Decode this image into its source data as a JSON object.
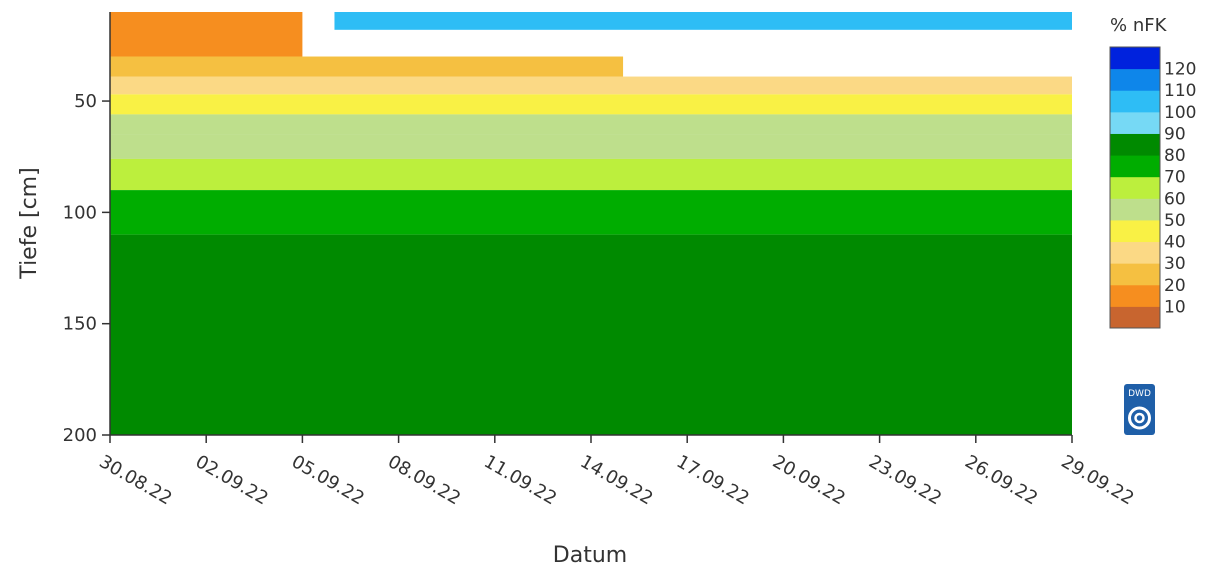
{
  "chart_data": {
    "type": "heatmap",
    "title": "",
    "xlabel": "Datum",
    "ylabel": "Tiefe [cm]",
    "x_ticks": [
      "30.08.22",
      "02.09.22",
      "05.09.22",
      "08.09.22",
      "11.09.22",
      "14.09.22",
      "17.09.22",
      "20.09.22",
      "23.09.22",
      "26.09.22",
      "29.09.22"
    ],
    "y_ticks": [
      50,
      100,
      150,
      200
    ],
    "xlim": [
      "2022-08-30",
      "2022-09-29"
    ],
    "ylim": [
      10,
      200
    ],
    "y_reversed": true,
    "colorbar": {
      "title": "% nFK",
      "levels": [
        10,
        20,
        30,
        40,
        50,
        60,
        70,
        80,
        90,
        100,
        110,
        120
      ],
      "colors": [
        "#c8652f",
        "#f68e1f",
        "#f5c041",
        "#fbd985",
        "#f9f145",
        "#bedf8c",
        "#bcef3d",
        "#00ad00",
        "#008a00",
        "#76d9f5",
        "#2ebdf5",
        "#0e86ea",
        "#0022dd"
      ]
    },
    "series": [
      {
        "depth_from": 10,
        "depth_to": 30,
        "period": "30.08.22 – 05.09.22",
        "nfk": 10
      },
      {
        "depth_from": 30,
        "depth_to": 39,
        "period": "30.08.22 – 15.09.22",
        "nfk": 20
      },
      {
        "depth_from": 39,
        "depth_to": 47,
        "period": "30.08.22 – 29.09.22",
        "nfk": 30
      },
      {
        "depth_from": 47,
        "depth_to": 56,
        "period": "30.08.22 – 29.09.22",
        "nfk": 40
      },
      {
        "depth_from": 56,
        "depth_to": 65,
        "period": "30.08.22 – 29.09.22",
        "nfk": 50
      },
      {
        "depth_from": 65,
        "depth_to": 76,
        "period": "30.08.22 – 29.09.22",
        "nfk": 55
      },
      {
        "depth_from": 76,
        "depth_to": 90,
        "period": "30.08.22 – 29.09.22",
        "nfk": 65
      },
      {
        "depth_from": 90,
        "depth_to": 110,
        "period": "30.08.22 – 29.09.22",
        "nfk": 75
      },
      {
        "depth_from": 110,
        "depth_to": 200,
        "period": "30.08.22 – 29.09.22",
        "nfk": 85
      },
      {
        "depth_from": 10,
        "depth_to": 18,
        "period": "06.09.22 – 29.09.22",
        "nfk": 100
      }
    ]
  },
  "logo": {
    "text": "DWD",
    "color": "#1f5fa8"
  }
}
